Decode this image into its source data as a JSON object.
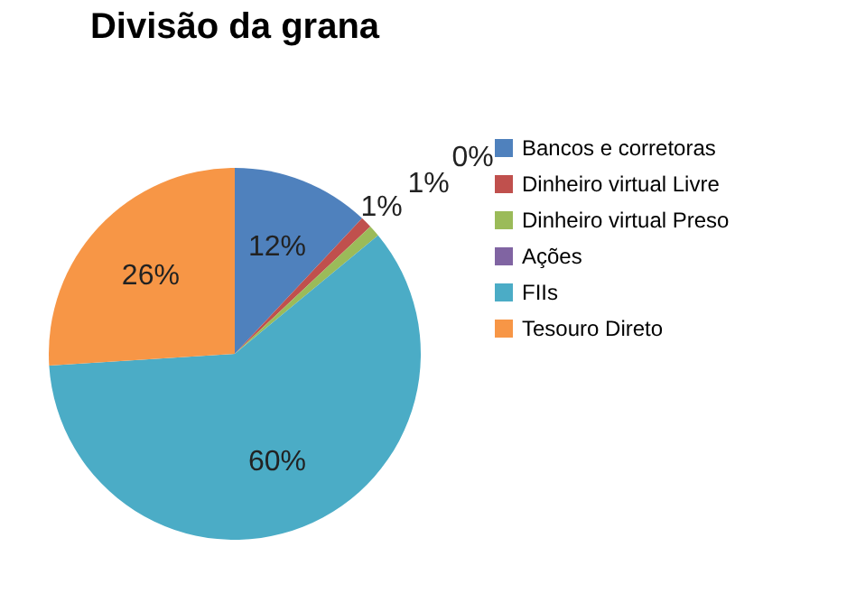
{
  "chart_data": {
    "type": "pie",
    "title": "Divisão da grana",
    "categories": [
      "Bancos e corretoras",
      "Dinheiro virtual Livre",
      "Dinheiro virtual Preso",
      "Ações",
      "FIIs",
      "Tesouro Direto"
    ],
    "values": [
      12,
      1,
      1,
      0,
      60,
      26
    ],
    "colors": [
      "#4f81bd",
      "#c0504d",
      "#9bbb59",
      "#8064a2",
      "#4bacc6",
      "#f79646"
    ],
    "value_labels": [
      "12%",
      "1%",
      "1%",
      "0%",
      "60%",
      "26%"
    ],
    "legend": "right"
  }
}
